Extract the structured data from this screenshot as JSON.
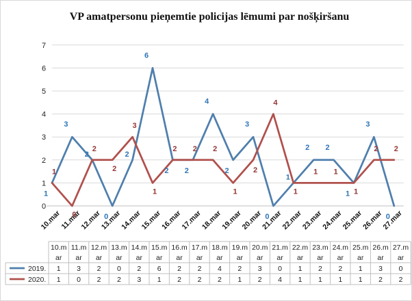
{
  "chart_data": {
    "type": "line",
    "title": "VP amatpersonu  pieņemtie policijas  lēmumi  par  nošķiršanu",
    "categories": [
      "10.mar",
      "11.mar",
      "12.mar",
      "13.mar",
      "14.mar",
      "15.mar",
      "16.mar",
      "17.mar",
      "18.mar",
      "19.mar",
      "20.mar",
      "21.mar",
      "22.mar",
      "23.mar",
      "24.mar",
      "25.mar",
      "26.mar",
      "27.mar"
    ],
    "table_headers": [
      [
        "10.m",
        "ar"
      ],
      [
        "11.m",
        "ar"
      ],
      [
        "12.m",
        "ar"
      ],
      [
        "13.m",
        "ar"
      ],
      [
        "14.m",
        "ar"
      ],
      [
        "15.m",
        "ar"
      ],
      [
        "16.m",
        "ar"
      ],
      [
        "17.m",
        "ar"
      ],
      [
        "18.m",
        "ar"
      ],
      [
        "19.m",
        "ar"
      ],
      [
        "20.m",
        "ar"
      ],
      [
        "21.m",
        "ar"
      ],
      [
        "22.m",
        "ar"
      ],
      [
        "23.m",
        "ar"
      ],
      [
        "24.m",
        "ar"
      ],
      [
        "25.m",
        "ar"
      ],
      [
        "26.m",
        "ar"
      ],
      [
        "27.m",
        "ar"
      ]
    ],
    "ylim": [
      0,
      7
    ],
    "yticks": [
      "0",
      "1",
      "2",
      "3",
      "4",
      "5",
      "6",
      "7"
    ],
    "grid": true,
    "series": [
      {
        "name": "2019.",
        "color": "#4f7fad",
        "label_color": "#2e75b6",
        "values": [
          1,
          3,
          2,
          0,
          2,
          6,
          2,
          2,
          4,
          2,
          3,
          0,
          1,
          2,
          2,
          1,
          3,
          0
        ]
      },
      {
        "name": "2020.",
        "color": "#b0504c",
        "label_color": "#943634",
        "values": [
          1,
          0,
          2,
          2,
          3,
          1,
          2,
          2,
          2,
          1,
          2,
          4,
          1,
          1,
          1,
          1,
          2,
          2
        ]
      }
    ]
  }
}
